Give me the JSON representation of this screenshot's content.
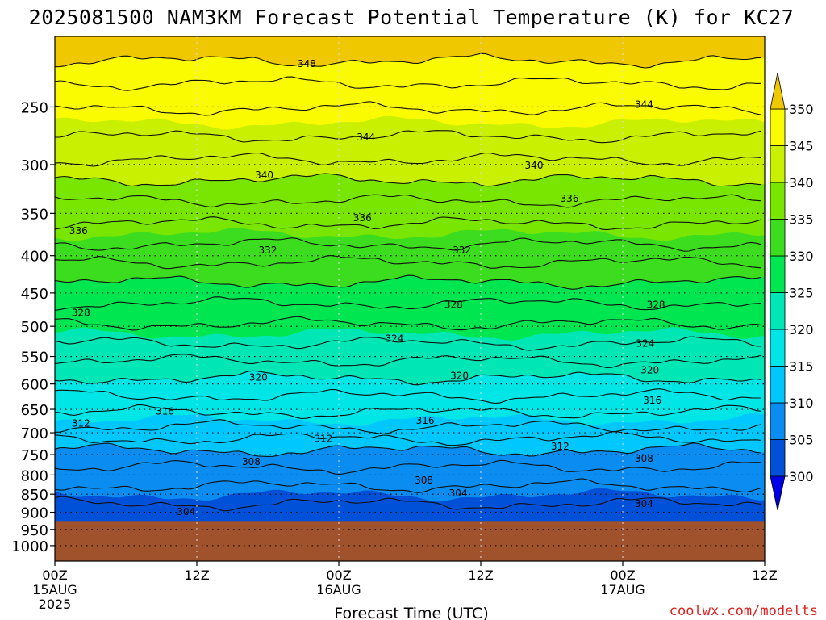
{
  "chart_data": {
    "type": "heatmap",
    "title": "2025081500 NAM3KM Forecast Potential Temperature (K) for KC27",
    "xlabel": "Forecast Time (UTC)",
    "ylabel": "",
    "watermark": "coolwx.com/modelts",
    "x_ticks": [
      {
        "label": "00Z",
        "sub": "15AUG",
        "sub2": "2025",
        "hour": 0
      },
      {
        "label": "12Z",
        "sub": "",
        "sub2": "",
        "hour": 12
      },
      {
        "label": "00Z",
        "sub": "16AUG",
        "sub2": "",
        "hour": 24
      },
      {
        "label": "12Z",
        "sub": "",
        "sub2": "",
        "hour": 36
      },
      {
        "label": "00Z",
        "sub": "17AUG",
        "sub2": "",
        "hour": 48
      },
      {
        "label": "12Z",
        "sub": "",
        "sub2": "",
        "hour": 60
      }
    ],
    "xlim_hours": [
      0,
      60
    ],
    "y_axis": "pressure (log scale)",
    "y_ticks": [
      250,
      300,
      350,
      400,
      450,
      500,
      550,
      600,
      650,
      700,
      750,
      800,
      850,
      900,
      950,
      1000
    ],
    "ylim_hPa": [
      1050,
      200
    ],
    "ground_pressure_hPa": 925,
    "gridlines": "dotted",
    "colorbar": {
      "levels": [
        300,
        305,
        310,
        315,
        320,
        325,
        330,
        335,
        340,
        345,
        350
      ],
      "labels": [
        "300",
        "305",
        "310",
        "315",
        "320",
        "325",
        "330",
        "335",
        "340",
        "345",
        "350"
      ],
      "colors": [
        "#0000e6",
        "#0050d8",
        "#0a8cf0",
        "#00c8ff",
        "#00e6e6",
        "#00e6b4",
        "#00e650",
        "#3cdc1e",
        "#78e600",
        "#c8f000",
        "#fafa00",
        "#f0c800"
      ],
      "placement": "right",
      "extend": "both"
    },
    "contour_interval_K": 2,
    "contour_labels": [
      {
        "value": 348,
        "hour": 21.3,
        "p": 218
      },
      {
        "value": 344,
        "hour": 26.3,
        "p": 275
      },
      {
        "value": 344,
        "hour": 49.8,
        "p": 248
      },
      {
        "value": 340,
        "hour": 17.7,
        "p": 310
      },
      {
        "value": 340,
        "hour": 40.5,
        "p": 301
      },
      {
        "value": 336,
        "hour": 2.0,
        "p": 370
      },
      {
        "value": 336,
        "hour": 26.0,
        "p": 355
      },
      {
        "value": 336,
        "hour": 43.5,
        "p": 334
      },
      {
        "value": 332,
        "hour": 18.0,
        "p": 393
      },
      {
        "value": 332,
        "hour": 34.4,
        "p": 393
      },
      {
        "value": 328,
        "hour": 2.2,
        "p": 479
      },
      {
        "value": 328,
        "hour": 33.7,
        "p": 467
      },
      {
        "value": 328,
        "hour": 50.8,
        "p": 467
      },
      {
        "value": 324,
        "hour": 28.7,
        "p": 520
      },
      {
        "value": 324,
        "hour": 49.9,
        "p": 528
      },
      {
        "value": 320,
        "hour": 17.2,
        "p": 588
      },
      {
        "value": 320,
        "hour": 34.2,
        "p": 585
      },
      {
        "value": 320,
        "hour": 50.3,
        "p": 574
      },
      {
        "value": 316,
        "hour": 9.3,
        "p": 654
      },
      {
        "value": 316,
        "hour": 31.3,
        "p": 674
      },
      {
        "value": 316,
        "hour": 50.5,
        "p": 632
      },
      {
        "value": 312,
        "hour": 2.2,
        "p": 680
      },
      {
        "value": 312,
        "hour": 22.7,
        "p": 713
      },
      {
        "value": 312,
        "hour": 42.7,
        "p": 731
      },
      {
        "value": 308,
        "hour": 16.6,
        "p": 767
      },
      {
        "value": 308,
        "hour": 31.2,
        "p": 814
      },
      {
        "value": 308,
        "hour": 49.8,
        "p": 759
      },
      {
        "value": 304,
        "hour": 11.1,
        "p": 899
      },
      {
        "value": 304,
        "hour": 34.1,
        "p": 847
      },
      {
        "value": 304,
        "hour": 49.8,
        "p": 876
      }
    ]
  }
}
